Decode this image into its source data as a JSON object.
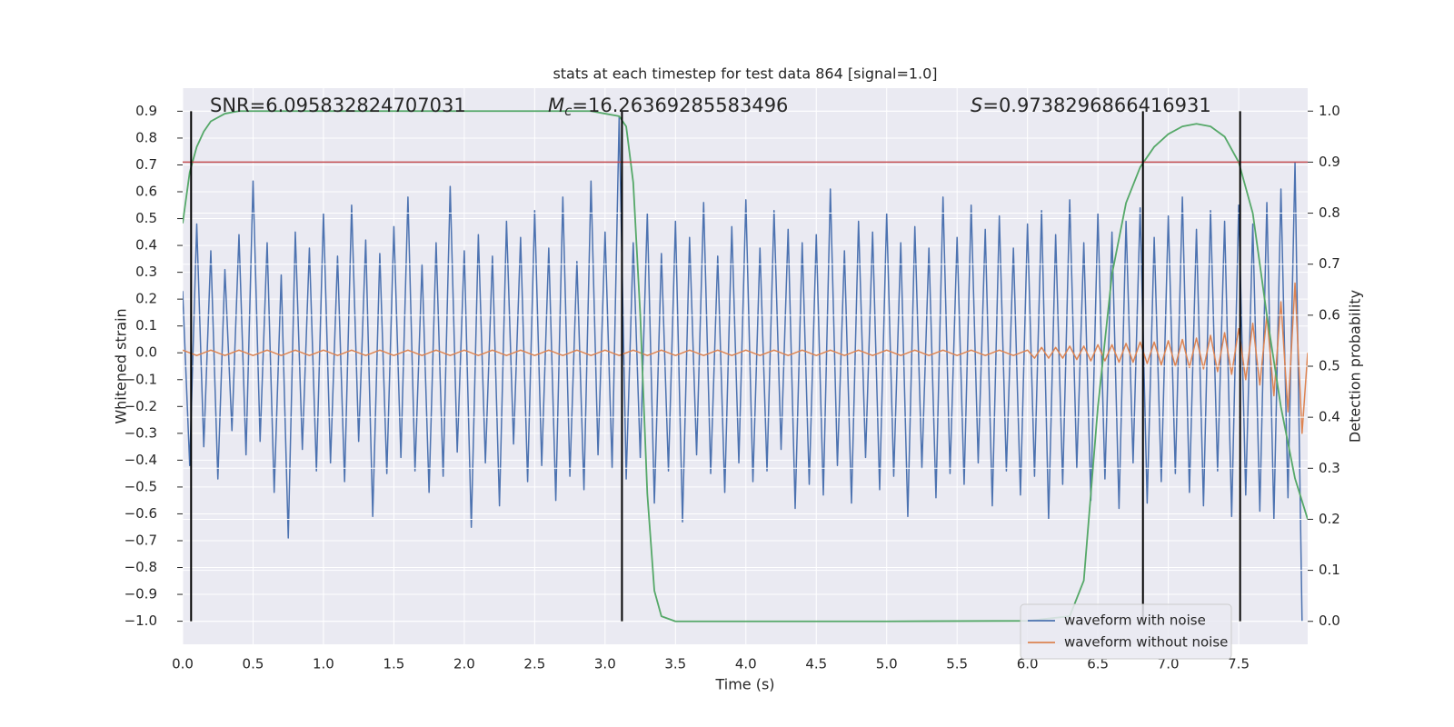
{
  "chart_data": {
    "type": "line",
    "title": "stats at each timestep for test data 864 [signal=1.0]",
    "xlabel": "Time (s)",
    "ylabel": "Whitened strain",
    "y2label": "Detection probability",
    "annotations": [
      {
        "text": "SNR=6.095832824707031"
      },
      {
        "symbol": "M",
        "subscript": "c",
        "text": "=16.26369285583496"
      },
      {
        "symbol": "S",
        "text": "=0.9738296866416931"
      }
    ],
    "xlim": [
      0,
      7.99
    ],
    "ylim": [
      -1.086,
      0.986
    ],
    "y2lim": [
      -0.045,
      1.045
    ],
    "xticks": [
      {
        "value": 0,
        "label": "0.0"
      },
      0.5,
      {
        "value": 1,
        "label": "1.0"
      },
      1.5,
      {
        "value": 2,
        "label": "2.0"
      },
      2.5,
      {
        "value": 3,
        "label": "3.0"
      },
      3.5,
      {
        "value": 4,
        "label": "4.0"
      },
      4.5,
      {
        "value": 5,
        "label": "5.0"
      },
      5.5,
      {
        "value": 6,
        "label": "6.0"
      },
      6.5,
      {
        "value": 7,
        "label": "7.0"
      },
      7.5
    ],
    "yticks": [
      {
        "value": -1,
        "label": "−1.0"
      },
      {
        "value": -0.9,
        "label": "−0.9"
      },
      {
        "value": -0.8,
        "label": "−0.8"
      },
      {
        "value": -0.7,
        "label": "−0.7"
      },
      {
        "value": -0.6,
        "label": "−0.6"
      },
      {
        "value": -0.5,
        "label": "−0.5"
      },
      {
        "value": -0.4,
        "label": "−0.4"
      },
      {
        "value": -0.3,
        "label": "−0.3"
      },
      {
        "value": -0.2,
        "label": "−0.2"
      },
      {
        "value": -0.1,
        "label": "−0.1"
      },
      {
        "value": 0,
        "label": "0.0"
      },
      0.1,
      0.2,
      0.3,
      0.4,
      0.5,
      0.6,
      0.7,
      0.8,
      0.9
    ],
    "y2ticks": [
      {
        "value": 0,
        "label": "0.0"
      },
      0.1,
      0.2,
      0.3,
      0.4,
      0.5,
      0.6,
      0.7,
      0.8,
      0.9,
      {
        "value": 1,
        "label": "1.0"
      }
    ],
    "grid": true,
    "legend": "lower right",
    "threshold": 0.9,
    "threshold_color": "#c44e52",
    "vlines": [
      0.06,
      3.12,
      6.82,
      7.51
    ],
    "vline_range": [
      -1.0,
      0.9
    ],
    "vline_color": "#000000",
    "series": [
      {
        "name": "waveform with noise",
        "color": "#4c72b0",
        "x": [
          0,
          0.05,
          0.1,
          0.15,
          0.2,
          0.25,
          0.3,
          0.35,
          0.4,
          0.45,
          0.5,
          0.55,
          0.6,
          0.65,
          0.7,
          0.75,
          0.8,
          0.85,
          0.9,
          0.95,
          1,
          1.05,
          1.1,
          1.15,
          1.2,
          1.25,
          1.3,
          1.35,
          1.4,
          1.45,
          1.5,
          1.55,
          1.6,
          1.65,
          1.7,
          1.75,
          1.8,
          1.85,
          1.9,
          1.95,
          2,
          2.05,
          2.1,
          2.15,
          2.2,
          2.25,
          2.3,
          2.35,
          2.4,
          2.45,
          2.5,
          2.55,
          2.6,
          2.65,
          2.7,
          2.75,
          2.8,
          2.85,
          2.9,
          2.95,
          3,
          3.05,
          3.1,
          3.15,
          3.2,
          3.25,
          3.3,
          3.35,
          3.4,
          3.45,
          3.5,
          3.55,
          3.6,
          3.65,
          3.7,
          3.75,
          3.8,
          3.85,
          3.9,
          3.95,
          4,
          4.05,
          4.1,
          4.15,
          4.2,
          4.25,
          4.3,
          4.35,
          4.4,
          4.45,
          4.5,
          4.55,
          4.6,
          4.65,
          4.7,
          4.75,
          4.8,
          4.85,
          4.9,
          4.95,
          5,
          5.05,
          5.1,
          5.15,
          5.2,
          5.25,
          5.3,
          5.35,
          5.4,
          5.45,
          5.5,
          5.55,
          5.6,
          5.65,
          5.7,
          5.75,
          5.8,
          5.85,
          5.9,
          5.95,
          6,
          6.05,
          6.1,
          6.15,
          6.2,
          6.25,
          6.3,
          6.35,
          6.4,
          6.45,
          6.5,
          6.55,
          6.6,
          6.65,
          6.7,
          6.75,
          6.8,
          6.85,
          6.9,
          6.95,
          7,
          7.05,
          7.1,
          7.15,
          7.2,
          7.25,
          7.3,
          7.35,
          7.4,
          7.45,
          7.5,
          7.55,
          7.6,
          7.65,
          7.7,
          7.75,
          7.8,
          7.85,
          7.9,
          7.95
        ],
        "values": [
          0.23,
          -0.42,
          0.48,
          -0.35,
          0.38,
          -0.47,
          0.31,
          -0.29,
          0.44,
          -0.38,
          0.64,
          -0.33,
          0.41,
          -0.52,
          0.29,
          -0.69,
          0.45,
          -0.36,
          0.39,
          -0.44,
          0.52,
          -0.41,
          0.36,
          -0.48,
          0.55,
          -0.33,
          0.42,
          -0.61,
          0.37,
          -0.45,
          0.47,
          -0.39,
          0.58,
          -0.44,
          0.33,
          -0.52,
          0.41,
          -0.46,
          0.62,
          -0.37,
          0.38,
          -0.65,
          0.44,
          -0.41,
          0.36,
          -0.57,
          0.49,
          -0.34,
          0.43,
          -0.48,
          0.53,
          -0.42,
          0.39,
          -0.55,
          0.58,
          -0.46,
          0.34,
          -0.51,
          0.64,
          -0.38,
          0.45,
          -0.43,
          0.88,
          -0.47,
          0.41,
          -0.39,
          0.52,
          -0.56,
          0.37,
          -0.44,
          0.49,
          -0.63,
          0.43,
          -0.38,
          0.56,
          -0.45,
          0.36,
          -0.52,
          0.47,
          -0.41,
          0.57,
          -0.48,
          0.39,
          -0.44,
          0.53,
          -0.36,
          0.46,
          -0.58,
          0.41,
          -0.49,
          0.44,
          -0.53,
          0.61,
          -0.42,
          0.38,
          -0.56,
          0.49,
          -0.39,
          0.45,
          -0.51,
          0.52,
          -0.46,
          0.41,
          -0.61,
          0.47,
          -0.43,
          0.39,
          -0.54,
          0.58,
          -0.45,
          0.43,
          -0.49,
          0.55,
          -0.41,
          0.46,
          -0.57,
          0.51,
          -0.44,
          0.39,
          -0.53,
          0.48,
          -0.46,
          0.53,
          -0.62,
          0.44,
          -0.49,
          0.57,
          -0.43,
          0.41,
          -0.55,
          0.52,
          -0.47,
          0.45,
          -0.58,
          0.49,
          -0.41,
          0.54,
          -0.56,
          0.43,
          -0.48,
          0.51,
          -0.45,
          0.58,
          -0.52,
          0.46,
          -0.57,
          0.53,
          -0.44,
          0.49,
          -0.61,
          0.55,
          -0.53,
          0.48,
          -0.59,
          0.56,
          -0.62,
          0.61,
          -0.54,
          0.71,
          -1.0
        ]
      },
      {
        "name": "waveform without noise",
        "color": "#dd8452",
        "x": [
          0,
          0.1,
          0.2,
          0.3,
          0.4,
          0.5,
          0.6,
          0.7,
          0.8,
          0.9,
          1,
          1.1,
          1.2,
          1.3,
          1.4,
          1.5,
          1.6,
          1.7,
          1.8,
          1.9,
          2,
          2.1,
          2.2,
          2.3,
          2.4,
          2.5,
          2.6,
          2.7,
          2.8,
          2.9,
          3,
          3.1,
          3.2,
          3.3,
          3.4,
          3.5,
          3.6,
          3.7,
          3.8,
          3.9,
          4,
          4.1,
          4.2,
          4.3,
          4.4,
          4.5,
          4.6,
          4.7,
          4.8,
          4.9,
          5,
          5.1,
          5.2,
          5.3,
          5.4,
          5.5,
          5.6,
          5.7,
          5.8,
          5.9,
          6,
          6.05,
          6.1,
          6.15,
          6.2,
          6.25,
          6.3,
          6.35,
          6.4,
          6.45,
          6.5,
          6.55,
          6.6,
          6.65,
          6.7,
          6.75,
          6.8,
          6.85,
          6.9,
          6.95,
          7,
          7.05,
          7.1,
          7.15,
          7.2,
          7.25,
          7.3,
          7.35,
          7.4,
          7.45,
          7.5,
          7.55,
          7.6,
          7.65,
          7.7,
          7.75,
          7.8,
          7.85,
          7.9,
          7.95,
          7.99
        ],
        "values": [
          0.01,
          -0.01,
          0.01,
          -0.01,
          0.01,
          -0.01,
          0.01,
          -0.01,
          0.01,
          -0.01,
          0.01,
          -0.01,
          0.01,
          -0.01,
          0.01,
          -0.01,
          0.01,
          -0.01,
          0.01,
          -0.01,
          0.01,
          -0.01,
          0.01,
          -0.01,
          0.01,
          -0.01,
          0.01,
          -0.01,
          0.01,
          -0.01,
          0.01,
          -0.01,
          0.01,
          -0.01,
          0.01,
          -0.01,
          0.01,
          -0.01,
          0.01,
          -0.01,
          0.01,
          -0.01,
          0.01,
          -0.01,
          0.01,
          -0.01,
          0.01,
          -0.01,
          0.01,
          -0.01,
          0.01,
          -0.01,
          0.01,
          -0.01,
          0.01,
          -0.01,
          0.01,
          -0.01,
          0.01,
          -0.01,
          0.01,
          -0.02,
          0.02,
          -0.02,
          0.02,
          -0.02,
          0.025,
          -0.025,
          0.025,
          -0.03,
          0.03,
          -0.03,
          0.03,
          -0.035,
          0.035,
          -0.035,
          0.04,
          -0.04,
          0.04,
          -0.045,
          0.045,
          -0.05,
          0.05,
          -0.055,
          0.055,
          -0.06,
          0.065,
          -0.07,
          0.075,
          -0.08,
          0.09,
          -0.1,
          0.11,
          -0.12,
          0.14,
          -0.16,
          0.19,
          -0.22,
          0.26,
          -0.3,
          0
        ]
      },
      {
        "color": "#55a868",
        "axis": "y2",
        "x": [
          0,
          0.05,
          0.1,
          0.15,
          0.2,
          0.3,
          0.4,
          1,
          2,
          2.9,
          3,
          3.1,
          3.15,
          3.2,
          3.25,
          3.3,
          3.35,
          3.4,
          3.5,
          4,
          5,
          6,
          6.3,
          6.4,
          6.5,
          6.6,
          6.7,
          6.8,
          6.9,
          7,
          7.1,
          7.2,
          7.3,
          7.4,
          7.5,
          7.6,
          7.7,
          7.8,
          7.9,
          7.99
        ],
        "values": [
          0.78,
          0.88,
          0.93,
          0.96,
          0.98,
          0.995,
          1,
          1,
          1,
          1,
          0.995,
          0.99,
          0.97,
          0.86,
          0.6,
          0.25,
          0.06,
          0.01,
          0,
          0,
          0,
          0.001,
          0.01,
          0.08,
          0.42,
          0.68,
          0.82,
          0.89,
          0.93,
          0.955,
          0.97,
          0.975,
          0.97,
          0.95,
          0.9,
          0.8,
          0.6,
          0.42,
          0.28,
          0.2
        ]
      }
    ]
  }
}
